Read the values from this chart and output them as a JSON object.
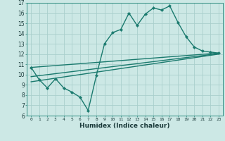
{
  "xlabel": "Humidex (Indice chaleur)",
  "bg_color": "#cce8e5",
  "grid_color": "#aacfcc",
  "line_color": "#1a7a6e",
  "xlim": [
    -0.5,
    23.5
  ],
  "ylim": [
    6,
    17
  ],
  "xticks": [
    0,
    1,
    2,
    3,
    4,
    5,
    6,
    7,
    8,
    9,
    10,
    11,
    12,
    13,
    14,
    15,
    16,
    17,
    18,
    19,
    20,
    21,
    22,
    23
  ],
  "yticks": [
    6,
    7,
    8,
    9,
    10,
    11,
    12,
    13,
    14,
    15,
    16,
    17
  ],
  "series_main": {
    "x": [
      0,
      1,
      2,
      3,
      4,
      5,
      6,
      7,
      8,
      9,
      10,
      11,
      12,
      13,
      14,
      15,
      16,
      17,
      18,
      19,
      20,
      21,
      22,
      23
    ],
    "y": [
      10.7,
      9.5,
      8.7,
      9.6,
      8.7,
      8.3,
      7.8,
      6.5,
      9.9,
      13.0,
      14.1,
      14.4,
      16.0,
      14.8,
      15.9,
      16.5,
      16.3,
      16.7,
      15.1,
      13.7,
      12.7,
      12.3,
      12.2,
      12.1
    ]
  },
  "series_line1": {
    "x": [
      0,
      23
    ],
    "y": [
      10.7,
      12.1
    ]
  },
  "series_line2": {
    "x": [
      0,
      23
    ],
    "y": [
      9.8,
      12.05
    ]
  },
  "series_line3": {
    "x": [
      0,
      23
    ],
    "y": [
      9.3,
      12.0
    ]
  }
}
